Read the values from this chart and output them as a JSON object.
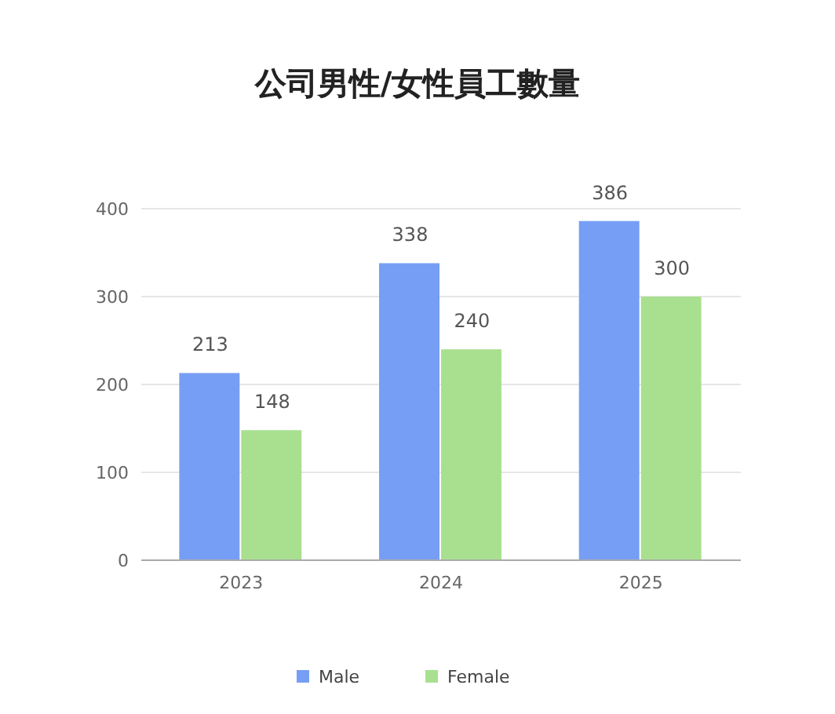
{
  "chart_data": {
    "type": "bar",
    "title": "公司男性/女性員工數量",
    "categories": [
      "2023",
      "2024",
      "2025"
    ],
    "series": [
      {
        "name": "Male",
        "color": "#779ef5",
        "values": [
          213,
          338,
          386
        ]
      },
      {
        "name": "Female",
        "color": "#a8e08f",
        "values": [
          148,
          240,
          300
        ]
      }
    ],
    "ylim": [
      0,
      400
    ],
    "yticks": [
      0,
      100,
      200,
      300,
      400
    ],
    "grid": "y",
    "legend": "bottom",
    "data_labels": true
  }
}
